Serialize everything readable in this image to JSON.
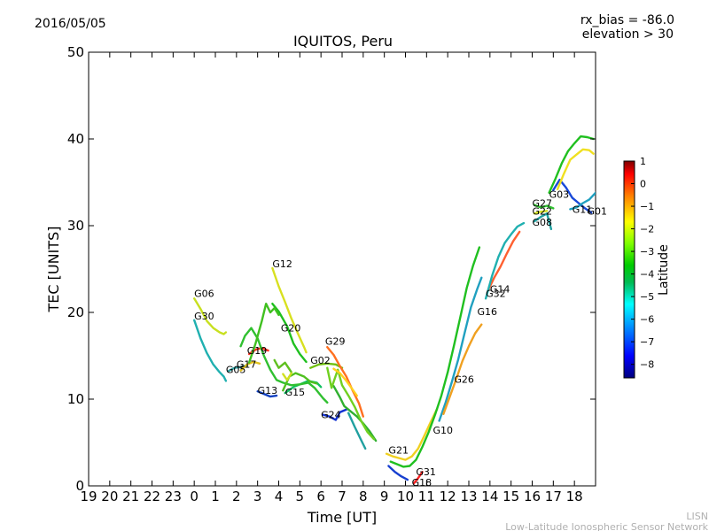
{
  "header": {
    "date": "2016/05/05",
    "rx_bias": "rx_bias = -86.0",
    "elevation": "elevation > 30"
  },
  "footer": {
    "org_short": "LISN",
    "org_long": "Low-Latitude Ionospheric Sensor Network"
  },
  "chart_data": {
    "type": "scatter",
    "title": "IQUITOS, Peru",
    "xlabel": "Time [UT]",
    "ylabel": "TEC [UNITS]",
    "x_range_hours_since_19ut_prev_day": [
      0,
      24
    ],
    "x_tick_labels": [
      "19",
      "20",
      "21",
      "22",
      "23",
      "0",
      "1",
      "2",
      "3",
      "4",
      "5",
      "6",
      "7",
      "8",
      "9",
      "10",
      "11",
      "12",
      "13",
      "14",
      "15",
      "16",
      "17",
      "18"
    ],
    "ylim": [
      0,
      50
    ],
    "y_ticks": [
      0,
      10,
      20,
      30,
      40,
      50
    ],
    "colorbar": {
      "label": "Latitude",
      "range": [
        -8.6,
        1.0
      ],
      "ticks": [
        1,
        0,
        -1,
        -2,
        -3,
        -4,
        -5,
        -6,
        -7,
        -8
      ],
      "colors": [
        "#00007f",
        "#0000ff",
        "#007fff",
        "#00ffff",
        "#00bb55",
        "#00cc00",
        "#7fff00",
        "#ffff00",
        "#ff7f00",
        "#ff0000",
        "#7f0000"
      ]
    },
    "series": [
      {
        "name": "G06",
        "label_at": [
          0.0,
          21.8
        ],
        "color": "#c8e020",
        "points": [
          [
            0.0,
            21.6
          ],
          [
            0.3,
            20.4
          ],
          [
            0.6,
            19.0
          ],
          [
            0.9,
            18.2
          ],
          [
            1.2,
            17.7
          ],
          [
            1.4,
            17.5
          ],
          [
            1.5,
            17.7
          ]
        ]
      },
      {
        "name": "G30",
        "label_at": [
          0.0,
          19.2
        ],
        "color": "#20b0b0",
        "points": [
          [
            0.0,
            19.1
          ],
          [
            0.3,
            17.0
          ],
          [
            0.6,
            15.3
          ],
          [
            0.9,
            14.0
          ],
          [
            1.2,
            13.1
          ],
          [
            1.4,
            12.6
          ],
          [
            1.5,
            12.1
          ]
        ]
      },
      {
        "name": "G05",
        "label_at": [
          1.5,
          13.0
        ],
        "color": "#30a0a0",
        "points": [
          [
            1.6,
            13.2
          ],
          [
            1.9,
            13.6
          ],
          [
            2.2,
            13.7
          ],
          [
            2.5,
            13.9
          ]
        ]
      },
      {
        "name": "G17",
        "label_at": [
          2.0,
          13.6
        ],
        "color": "#e0c020",
        "points": [
          [
            2.2,
            13.3
          ],
          [
            2.5,
            14.0
          ],
          [
            2.8,
            14.3
          ],
          [
            3.1,
            14.1
          ]
        ]
      },
      {
        "name": "G19",
        "label_at": [
          2.5,
          15.2
        ],
        "color": "#ff3020",
        "points": [
          [
            2.6,
            15.2
          ],
          [
            2.9,
            15.7
          ],
          [
            3.2,
            15.9
          ],
          [
            3.5,
            15.6
          ]
        ]
      },
      {
        "name": "G13",
        "label_at": [
          3.0,
          10.6
        ],
        "color": "#1040c0",
        "points": [
          [
            3.0,
            10.9
          ],
          [
            3.3,
            10.6
          ],
          [
            3.6,
            10.3
          ],
          [
            3.9,
            10.4
          ]
        ]
      },
      {
        "name": "G12",
        "label_at": [
          3.7,
          25.2
        ],
        "color": "#d8e020",
        "points": [
          [
            3.7,
            25.1
          ],
          [
            4.0,
            23.0
          ],
          [
            4.3,
            21.2
          ],
          [
            4.6,
            19.3
          ],
          [
            4.9,
            17.6
          ],
          [
            5.2,
            16.0
          ],
          [
            5.3,
            15.4
          ]
        ]
      },
      {
        "name": "G20",
        "label_at": [
          4.1,
          17.8
        ],
        "color": "#20c020",
        "points": [
          [
            3.7,
            21.0
          ],
          [
            4.0,
            20.1
          ],
          [
            4.4,
            18.4
          ],
          [
            4.7,
            16.4
          ],
          [
            5.0,
            15.2
          ],
          [
            5.3,
            14.3
          ]
        ]
      },
      {
        "name": "G15",
        "label_at": [
          4.3,
          10.4
        ],
        "color": "#10c060",
        "points": [
          [
            4.3,
            10.7
          ],
          [
            4.7,
            11.4
          ],
          [
            5.0,
            11.7
          ],
          [
            5.4,
            12.1
          ],
          [
            5.8,
            11.9
          ],
          [
            6.0,
            11.4
          ]
        ]
      },
      {
        "name": "G02",
        "label_at": [
          5.5,
          14.1
        ],
        "color": "#70c010",
        "points": [
          [
            5.5,
            13.6
          ],
          [
            5.9,
            14.0
          ],
          [
            6.3,
            14.1
          ],
          [
            6.7,
            14.0
          ],
          [
            7.0,
            13.6
          ]
        ]
      },
      {
        "name": "G29",
        "label_at": [
          6.2,
          16.3
        ],
        "color": "#ff7020",
        "points": [
          [
            6.3,
            16.0
          ],
          [
            6.6,
            15.1
          ],
          [
            6.9,
            13.8
          ],
          [
            7.2,
            12.6
          ],
          [
            7.5,
            11.0
          ],
          [
            7.8,
            9.5
          ],
          [
            8.0,
            8.0
          ]
        ]
      },
      {
        "name": "G24",
        "label_at": [
          6.0,
          7.8
        ],
        "color": "#1030d0",
        "points": [
          [
            6.1,
            8.2
          ],
          [
            6.4,
            8.0
          ],
          [
            6.7,
            7.6
          ],
          [
            6.9,
            8.5
          ],
          [
            7.2,
            8.8
          ]
        ]
      },
      {
        "name": "G21",
        "label_at": [
          9.2,
          3.7
        ],
        "color": "#f0d020",
        "points": [
          [
            9.1,
            3.7
          ],
          [
            9.4,
            3.4
          ],
          [
            9.7,
            3.2
          ],
          [
            10.0,
            3.0
          ],
          [
            10.3,
            3.4
          ],
          [
            10.6,
            4.3
          ],
          [
            10.9,
            5.8
          ],
          [
            11.2,
            7.4
          ],
          [
            11.5,
            8.9
          ]
        ]
      },
      {
        "name": "G10",
        "label_at": [
          11.3,
          6.0
        ],
        "color": "#20c020",
        "points": [
          [
            9.3,
            2.8
          ],
          [
            9.6,
            2.5
          ],
          [
            9.9,
            2.2
          ],
          [
            10.2,
            2.3
          ],
          [
            10.5,
            3.0
          ],
          [
            10.8,
            4.5
          ],
          [
            11.1,
            6.2
          ],
          [
            11.4,
            8.2
          ],
          [
            11.7,
            10.4
          ],
          [
            12.0,
            13.1
          ],
          [
            12.3,
            16.2
          ],
          [
            12.6,
            19.5
          ],
          [
            12.9,
            22.8
          ],
          [
            13.2,
            25.4
          ],
          [
            13.5,
            27.5
          ]
        ]
      },
      {
        "name": "G31",
        "label_at": [
          10.5,
          1.2
        ],
        "color": "#1840d0",
        "points": [
          [
            9.2,
            2.3
          ],
          [
            9.5,
            1.6
          ],
          [
            9.8,
            1.1
          ],
          [
            10.1,
            0.7
          ]
        ]
      },
      {
        "name": "G18",
        "label_at": [
          10.3,
          0.0
        ],
        "color": "#ff2020",
        "points": [
          [
            10.4,
            0.3
          ],
          [
            10.6,
            0.9
          ],
          [
            10.8,
            1.6
          ]
        ]
      },
      {
        "name": "G26",
        "label_at": [
          12.3,
          11.9
        ],
        "color": "#20a0c0",
        "points": [
          [
            11.6,
            7.5
          ],
          [
            11.9,
            9.6
          ],
          [
            12.2,
            12.0
          ],
          [
            12.5,
            14.6
          ],
          [
            12.8,
            17.6
          ],
          [
            13.1,
            20.6
          ],
          [
            13.4,
            22.7
          ],
          [
            13.6,
            24.0
          ]
        ]
      },
      {
        "name": "G16",
        "label_at": [
          13.4,
          19.7
        ],
        "color": "#f0a020",
        "points": [
          [
            11.8,
            8.3
          ],
          [
            12.1,
            10.3
          ],
          [
            12.4,
            12.3
          ],
          [
            12.7,
            14.4
          ],
          [
            13.0,
            16.1
          ],
          [
            13.3,
            17.6
          ],
          [
            13.6,
            18.6
          ]
        ]
      },
      {
        "name": "G14",
        "label_at": [
          14.0,
          22.3
        ],
        "color": "#ff6030",
        "points": [
          [
            13.9,
            22.5
          ],
          [
            14.2,
            24.0
          ],
          [
            14.5,
            25.3
          ],
          [
            14.8,
            26.8
          ],
          [
            15.1,
            28.2
          ],
          [
            15.4,
            29.3
          ]
        ]
      },
      {
        "name": "G32",
        "label_at": [
          13.8,
          21.8
        ],
        "color": "#20b0b0",
        "points": [
          [
            13.8,
            21.6
          ],
          [
            14.1,
            24.2
          ],
          [
            14.4,
            26.4
          ],
          [
            14.7,
            28.0
          ],
          [
            15.0,
            29.0
          ],
          [
            15.3,
            29.9
          ],
          [
            15.6,
            30.3
          ]
        ]
      },
      {
        "name": "G08",
        "label_at": [
          16.0,
          30.0
        ],
        "color": "#20a0a0",
        "points": [
          [
            16.1,
            30.5
          ],
          [
            16.4,
            31.0
          ],
          [
            16.7,
            31.4
          ],
          [
            16.9,
            29.6
          ]
        ]
      },
      {
        "name": "G27",
        "label_at": [
          16.0,
          32.2
        ],
        "color": "#30c030",
        "points": [
          [
            16.1,
            32.4
          ],
          [
            16.4,
            32.1
          ],
          [
            16.7,
            32.3
          ],
          [
            17.0,
            32.0
          ]
        ]
      },
      {
        "name": "G22",
        "label_at": [
          16.0,
          31.3
        ],
        "color": "#d0e020",
        "points": [
          [
            16.1,
            31.4
          ],
          [
            16.4,
            31.6
          ],
          [
            16.7,
            31.7
          ]
        ]
      },
      {
        "name": "G03",
        "label_at": [
          16.8,
          33.2
        ],
        "color": "#20c020",
        "points": [
          [
            16.8,
            33.8
          ],
          [
            17.1,
            35.4
          ],
          [
            17.4,
            37.2
          ],
          [
            17.7,
            38.6
          ],
          [
            18.0,
            39.5
          ],
          [
            18.3,
            40.3
          ],
          [
            18.6,
            40.2
          ],
          [
            18.9,
            40.0
          ]
        ]
      },
      {
        "name": "G11",
        "label_at": [
          17.9,
          31.5
        ],
        "color": "#1848d8",
        "points": [
          [
            17.0,
            34.1
          ],
          [
            17.3,
            35.3
          ],
          [
            17.6,
            34.4
          ],
          [
            17.9,
            33.2
          ],
          [
            18.2,
            32.6
          ],
          [
            18.5,
            32.0
          ],
          [
            18.8,
            31.5
          ]
        ]
      },
      {
        "name": "G01",
        "label_at": [
          18.6,
          31.3
        ],
        "color": "#20a0c0",
        "points": [
          [
            17.8,
            31.9
          ],
          [
            18.1,
            32.1
          ],
          [
            18.4,
            32.6
          ],
          [
            18.7,
            33.0
          ],
          [
            19.0,
            33.8
          ]
        ]
      },
      {
        "name": "",
        "color": "#f0e020",
        "points": [
          [
            17.2,
            34.2
          ],
          [
            17.5,
            36.0
          ],
          [
            17.8,
            37.6
          ],
          [
            18.1,
            38.2
          ],
          [
            18.4,
            38.8
          ],
          [
            18.7,
            38.7
          ],
          [
            18.9,
            38.3
          ]
        ]
      },
      {
        "name": "",
        "color": "#30c030",
        "points": [
          [
            2.2,
            16.1
          ],
          [
            2.4,
            17.3
          ],
          [
            2.7,
            18.2
          ],
          [
            3.0,
            17.0
          ],
          [
            3.3,
            15.0
          ],
          [
            3.6,
            13.4
          ],
          [
            3.9,
            12.2
          ],
          [
            4.2,
            11.9
          ],
          [
            4.6,
            11.6
          ],
          [
            5.0,
            11.7
          ],
          [
            5.4,
            11.9
          ],
          [
            5.7,
            11.3
          ],
          [
            6.1,
            10.1
          ],
          [
            6.3,
            9.6
          ]
        ]
      },
      {
        "name": "",
        "color": "#40c020",
        "points": [
          [
            2.6,
            14.2
          ],
          [
            2.9,
            16.4
          ],
          [
            3.2,
            19.0
          ],
          [
            3.4,
            21.0
          ],
          [
            3.6,
            20.0
          ],
          [
            3.8,
            20.5
          ],
          [
            4.0,
            19.7
          ]
        ]
      },
      {
        "name": "",
        "color": "#30b030",
        "points": [
          [
            6.6,
            11.5
          ],
          [
            6.9,
            10.2
          ],
          [
            7.1,
            9.2
          ],
          [
            7.4,
            8.6
          ],
          [
            7.7,
            8.0
          ],
          [
            8.0,
            7.2
          ],
          [
            8.3,
            6.3
          ],
          [
            8.6,
            5.2
          ]
        ]
      },
      {
        "name": "",
        "color": "#20a0a0",
        "points": [
          [
            7.3,
            8.4
          ],
          [
            7.6,
            6.8
          ],
          [
            7.9,
            5.3
          ],
          [
            8.1,
            4.3
          ]
        ]
      },
      {
        "name": "",
        "color": "#70d020",
        "points": [
          [
            6.3,
            13.6
          ],
          [
            6.5,
            11.3
          ],
          [
            6.8,
            13.4
          ],
          [
            7.0,
            11.6
          ],
          [
            7.3,
            10.4
          ],
          [
            7.6,
            9.1
          ],
          [
            7.9,
            7.5
          ],
          [
            8.2,
            6.2
          ],
          [
            8.5,
            5.4
          ]
        ]
      },
      {
        "name": "",
        "color": "#ffd020",
        "points": [
          [
            6.6,
            13.5
          ],
          [
            6.9,
            13.0
          ],
          [
            7.2,
            12.1
          ],
          [
            7.5,
            11.1
          ],
          [
            7.7,
            10.4
          ]
        ]
      },
      {
        "name": "",
        "color": "#50c020",
        "points": [
          [
            4.2,
            11.0
          ],
          [
            4.5,
            12.6
          ],
          [
            4.8,
            13.0
          ],
          [
            5.2,
            12.6
          ],
          [
            5.5,
            12.0
          ],
          [
            5.8,
            11.8
          ]
        ]
      },
      {
        "name": "",
        "color": "#60c020",
        "points": [
          [
            3.8,
            14.5
          ],
          [
            4.0,
            13.6
          ],
          [
            4.3,
            14.2
          ],
          [
            4.6,
            13.1
          ]
        ]
      },
      {
        "name": "",
        "color": "#d0e020",
        "points": [
          [
            4.2,
            12.9
          ],
          [
            4.4,
            12.2
          ],
          [
            4.6,
            13.0
          ]
        ]
      }
    ]
  }
}
